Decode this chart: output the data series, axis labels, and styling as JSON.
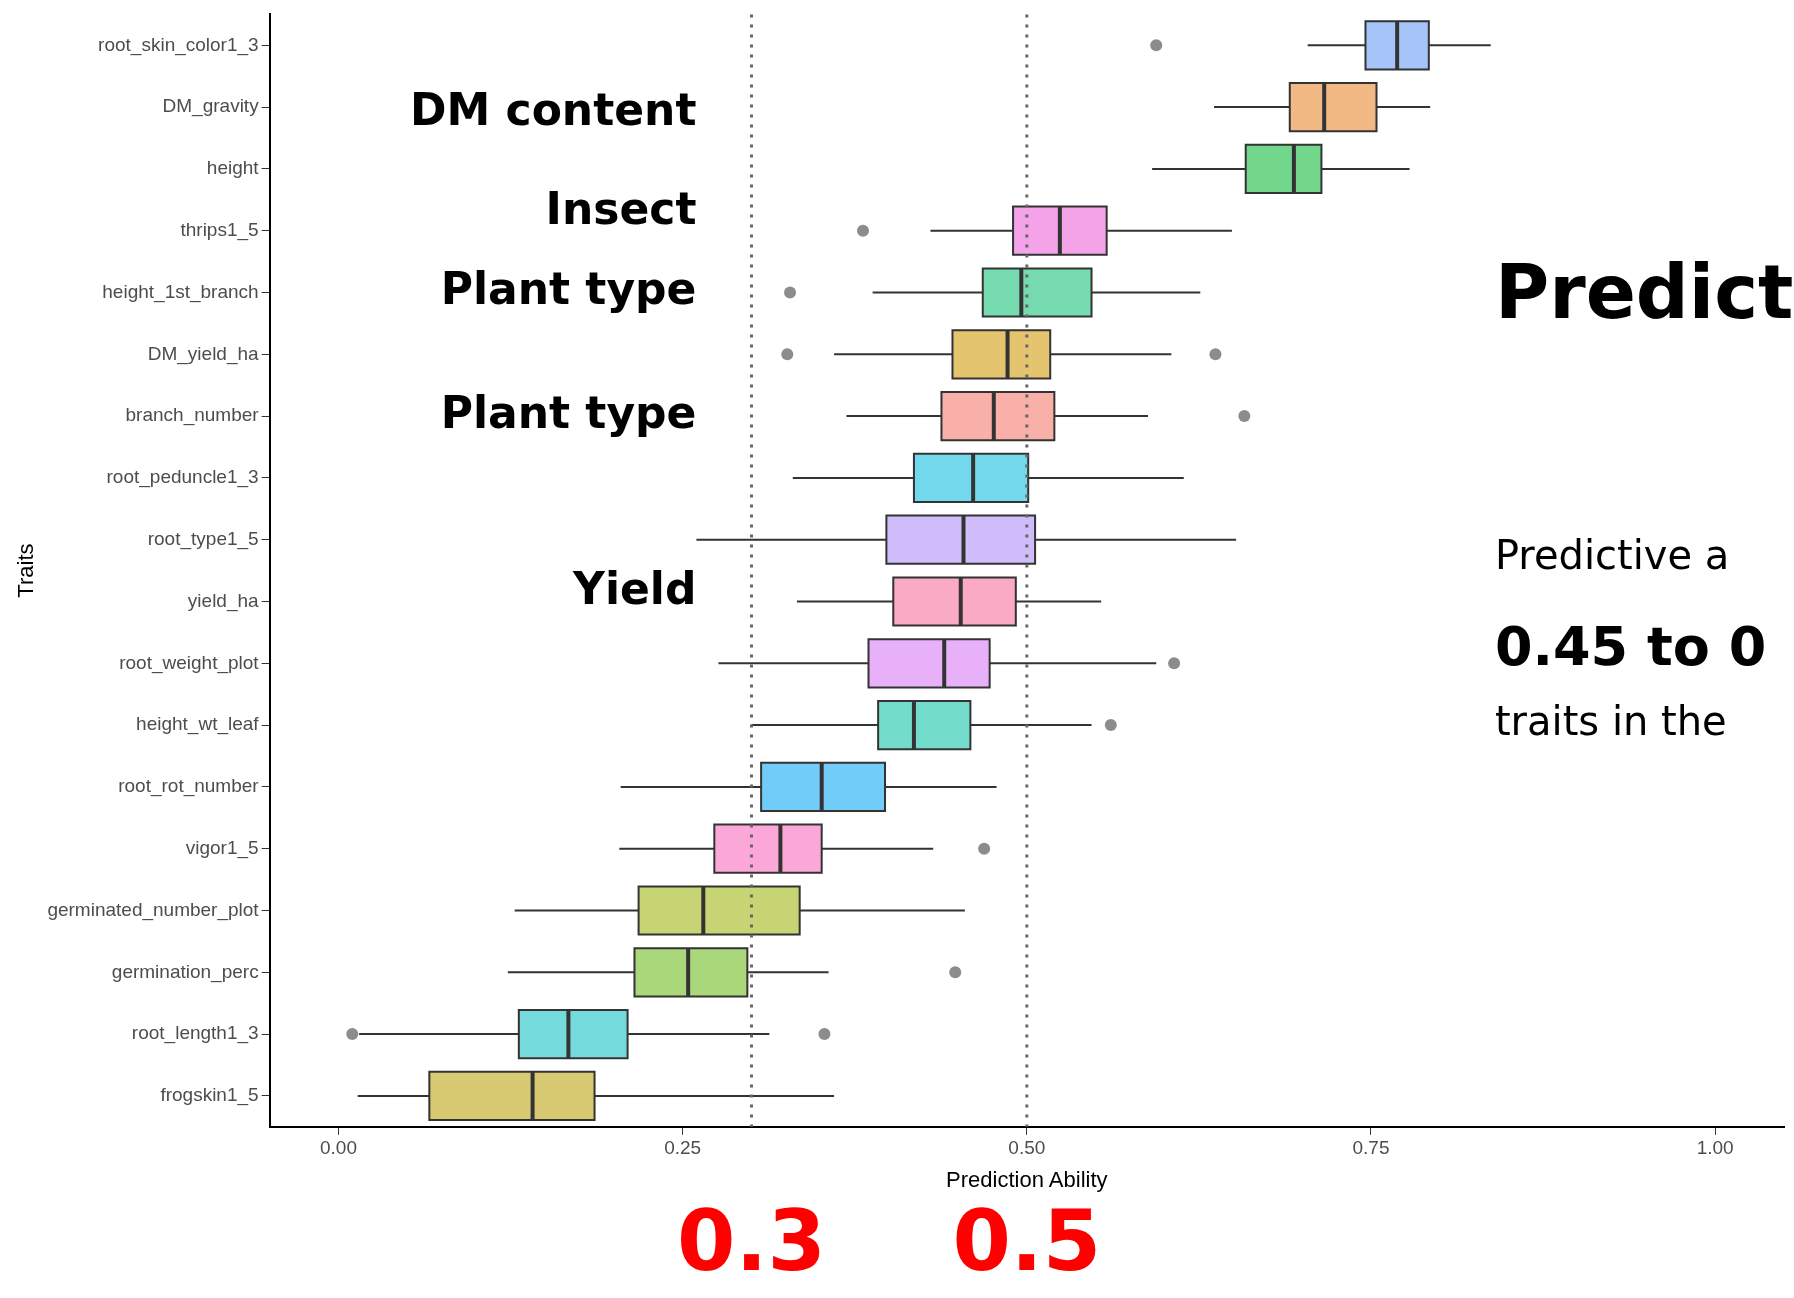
{
  "chart_data": {
    "type": "box",
    "orientation": "horizontal",
    "xlabel": "Prediction Ability",
    "ylabel": "Traits",
    "categories": [
      "root_skin_color1_3",
      "DM_gravity",
      "height",
      "thrips1_5",
      "height_1st_branch",
      "DM_yield_ha",
      "branch_number",
      "root_peduncle1_3",
      "root_type1_5",
      "yield_ha",
      "root_weight_plot",
      "height_wt_leaf",
      "root_rot_number",
      "vigor1_5",
      "germinated_number_plot",
      "germination_perc",
      "root_length1_3",
      "frogskin1_5"
    ],
    "colors": [
      "#a6c4f8",
      "#f2b985",
      "#72d68b",
      "#f5a3e8",
      "#76dcb0",
      "#e4c46f",
      "#f9b0a8",
      "#72d9ec",
      "#d0bcfb",
      "#fbaac5",
      "#e8b0f8",
      "#74dccb",
      "#72ccf8",
      "#fba8d8",
      "#c6d474",
      "#a9d779",
      "#74dadc",
      "#d8c973"
    ],
    "boxes": [
      {
        "low": 0.704,
        "q1": 0.746,
        "median": 0.769,
        "q3": 0.792,
        "high": 0.837,
        "outliers": [
          0.594
        ]
      },
      {
        "low": 0.636,
        "q1": 0.691,
        "median": 0.716,
        "q3": 0.754,
        "high": 0.793
      },
      {
        "low": 0.591,
        "q1": 0.659,
        "median": 0.694,
        "q3": 0.714,
        "high": 0.778
      },
      {
        "low": 0.43,
        "q1": 0.49,
        "median": 0.524,
        "q3": 0.558,
        "high": 0.649,
        "outliers": [
          0.381
        ]
      },
      {
        "low": 0.388,
        "q1": 0.468,
        "median": 0.496,
        "q3": 0.547,
        "high": 0.626,
        "outliers": [
          0.328
        ]
      },
      {
        "low": 0.36,
        "q1": 0.446,
        "median": 0.486,
        "q3": 0.517,
        "high": 0.605,
        "outliers": [
          0.326,
          0.637
        ]
      },
      {
        "low": 0.369,
        "q1": 0.438,
        "median": 0.476,
        "q3": 0.52,
        "high": 0.588,
        "outliers": [
          0.658
        ]
      },
      {
        "low": 0.33,
        "q1": 0.418,
        "median": 0.461,
        "q3": 0.501,
        "high": 0.614
      },
      {
        "low": 0.26,
        "q1": 0.398,
        "median": 0.454,
        "q3": 0.506,
        "high": 0.652
      },
      {
        "low": 0.333,
        "q1": 0.403,
        "median": 0.452,
        "q3": 0.492,
        "high": 0.554
      },
      {
        "low": 0.276,
        "q1": 0.385,
        "median": 0.44,
        "q3": 0.473,
        "high": 0.594,
        "outliers": [
          0.607
        ]
      },
      {
        "low": 0.3,
        "q1": 0.392,
        "median": 0.418,
        "q3": 0.459,
        "high": 0.547,
        "outliers": [
          0.561
        ]
      },
      {
        "low": 0.205,
        "q1": 0.307,
        "median": 0.351,
        "q3": 0.397,
        "high": 0.478
      },
      {
        "low": 0.204,
        "q1": 0.273,
        "median": 0.321,
        "q3": 0.351,
        "high": 0.432,
        "outliers": [
          0.469
        ]
      },
      {
        "low": 0.128,
        "q1": 0.218,
        "median": 0.265,
        "q3": 0.335,
        "high": 0.455
      },
      {
        "low": 0.123,
        "q1": 0.215,
        "median": 0.254,
        "q3": 0.297,
        "high": 0.356,
        "outliers": [
          0.448
        ]
      },
      {
        "low": 0.015,
        "q1": 0.131,
        "median": 0.167,
        "q3": 0.21,
        "high": 0.313,
        "outliers": [
          0.01,
          0.353
        ]
      },
      {
        "low": 0.014,
        "q1": 0.066,
        "median": 0.141,
        "q3": 0.186,
        "high": 0.36
      }
    ],
    "xlim": [
      -0.05,
      1.05
    ],
    "xticks": [
      {
        "value": 0,
        "label": "0.00"
      },
      {
        "value": 0.25,
        "label": "0.25"
      },
      {
        "value": 0.5,
        "label": "0.50"
      },
      {
        "value": 0.75,
        "label": "0.75"
      },
      {
        "value": 1,
        "label": "1.00"
      }
    ],
    "ref_lines": [
      {
        "axis": "x",
        "value": 0.3,
        "label": "0.3",
        "color": "#666666",
        "line_style": "dotted"
      },
      {
        "axis": "x",
        "value": 0.5,
        "label": "0.5",
        "color": "#666666",
        "line_style": "dotted"
      }
    ],
    "annotations": [
      "DM content",
      "Insect",
      "Plant type",
      "Plant type",
      "Yield",
      "Predict",
      "Predictive a",
      "0.45 to 0",
      "traits in the"
    ]
  }
}
